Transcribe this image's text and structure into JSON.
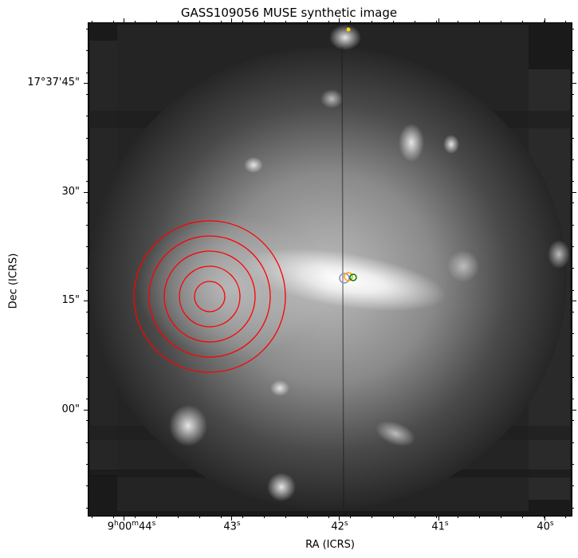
{
  "figure": {
    "title": "GASS109056 MUSE synthetic image",
    "xlabel": "RA (ICRS)",
    "ylabel": "Dec (ICRS)",
    "x_ticks": [
      {
        "h": "9",
        "m": "00",
        "s": "44",
        "label": "9h00m44s"
      },
      {
        "s": "43",
        "label": "43s"
      },
      {
        "s": "42",
        "label": "42s"
      },
      {
        "s": "41",
        "label": "41s"
      },
      {
        "s": "40",
        "label": "40s"
      }
    ],
    "y_ticks": [
      "17°37'45\"",
      "30\"",
      "15\"",
      "00\""
    ],
    "colors": {
      "circles": "#ff0000",
      "marker_blue": "#8c8ccc",
      "marker_orange": "#ffa500",
      "marker_green": "#008000",
      "star_marker": "#ffd700"
    },
    "overlay": {
      "concentric_circles": 5,
      "markers": [
        "blue-circle",
        "orange-circle",
        "green-circle",
        "yellow-dot"
      ]
    }
  }
}
